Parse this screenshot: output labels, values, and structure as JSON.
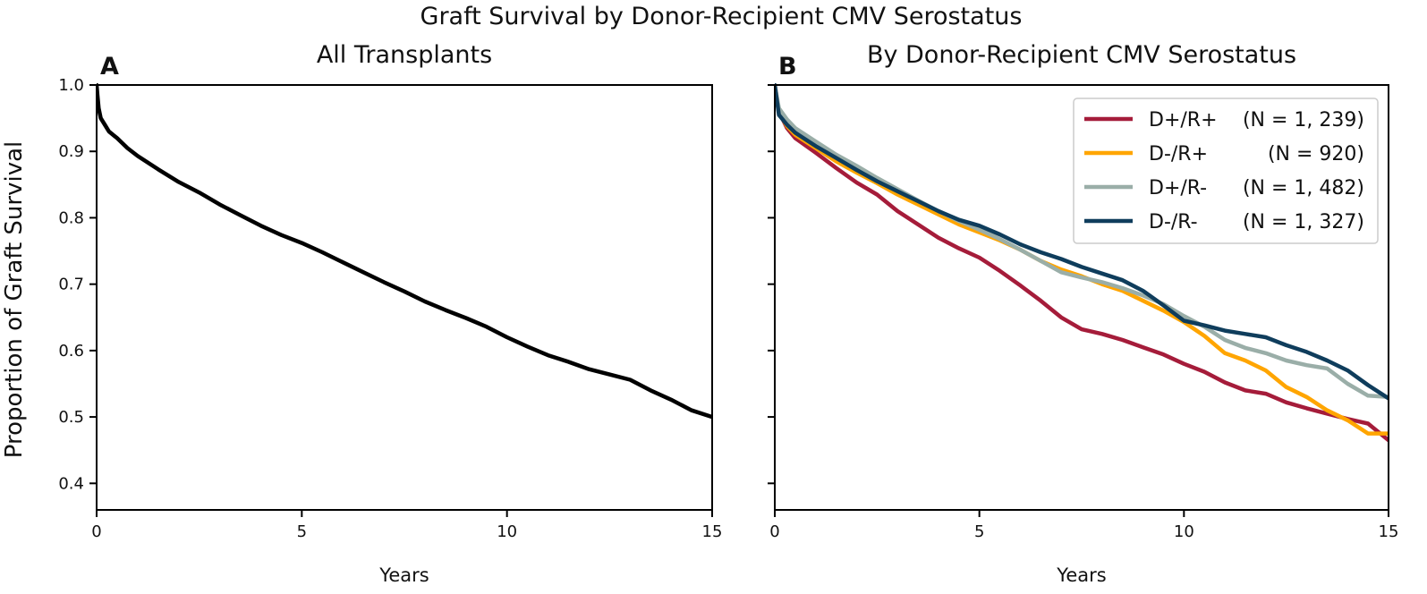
{
  "figure": {
    "suptitle": "Graft Survival by Donor-Recipient CMV Serostatus",
    "ylabel": "Proportion of Graft Survival"
  },
  "chart_data": [
    {
      "type": "line",
      "panel": "A",
      "title": "All Transplants",
      "xlabel": "Years",
      "ylabel": "Proportion of Graft Survival",
      "xlim": [
        0,
        15
      ],
      "ylim": [
        0.36,
        1.0
      ],
      "xticks": [
        0,
        5,
        10,
        15
      ],
      "yticks": [
        0.4,
        0.5,
        0.6,
        0.7,
        0.8,
        0.9,
        1.0
      ],
      "ytick_labels": [
        "0.4",
        "0.5",
        "0.6",
        "0.7",
        "0.8",
        "0.9",
        "1.0"
      ],
      "grid": false,
      "series": [
        {
          "color": "#000000",
          "x": [
            0,
            0.02,
            0.05,
            0.1,
            0.2,
            0.3,
            0.5,
            0.75,
            1,
            1.5,
            2,
            2.5,
            3,
            3.5,
            4,
            4.5,
            5,
            5.5,
            6,
            6.5,
            7,
            7.5,
            8,
            8.5,
            9,
            9.5,
            10,
            10.5,
            11,
            11.5,
            12,
            12.5,
            13,
            13.5,
            14,
            14.5,
            15
          ],
          "y": [
            1.0,
            0.985,
            0.965,
            0.95,
            0.94,
            0.93,
            0.92,
            0.905,
            0.893,
            0.873,
            0.854,
            0.838,
            0.82,
            0.804,
            0.788,
            0.774,
            0.762,
            0.748,
            0.733,
            0.718,
            0.703,
            0.689,
            0.674,
            0.661,
            0.649,
            0.636,
            0.62,
            0.606,
            0.593,
            0.583,
            0.572,
            0.564,
            0.556,
            0.54,
            0.526,
            0.51,
            0.5
          ]
        }
      ]
    },
    {
      "type": "line",
      "panel": "B",
      "title": "By Donor-Recipient CMV Serostatus",
      "xlabel": "Years",
      "xlim": [
        0,
        15
      ],
      "ylim": [
        0.36,
        1.0
      ],
      "xticks": [
        0,
        5,
        10,
        15
      ],
      "yticks": [
        0.4,
        0.5,
        0.6,
        0.7,
        0.8,
        0.9,
        1.0
      ],
      "grid": false,
      "legend_position": "top-right",
      "series": [
        {
          "name": "D+/R+",
          "n_label": "(N = 1, 239)",
          "color": "#a51c3a",
          "x": [
            0,
            0.1,
            0.3,
            0.5,
            1,
            1.5,
            2,
            2.5,
            3,
            3.5,
            4,
            4.5,
            5,
            5.5,
            6,
            6.5,
            7,
            7.5,
            8,
            8.5,
            9,
            9.5,
            10,
            10.5,
            11,
            11.5,
            12,
            12.5,
            13,
            13.5,
            14,
            14.5,
            15
          ],
          "y": [
            1.0,
            0.96,
            0.935,
            0.92,
            0.898,
            0.875,
            0.853,
            0.835,
            0.81,
            0.79,
            0.77,
            0.754,
            0.74,
            0.72,
            0.698,
            0.675,
            0.65,
            0.632,
            0.625,
            0.616,
            0.605,
            0.594,
            0.58,
            0.568,
            0.552,
            0.54,
            0.535,
            0.522,
            0.513,
            0.505,
            0.497,
            0.49,
            0.465
          ]
        },
        {
          "name": "D-/R+",
          "n_label": "(N = 920)",
          "color": "#ffa500",
          "x": [
            0,
            0.1,
            0.3,
            0.5,
            1,
            1.5,
            2,
            2.5,
            3,
            3.5,
            4,
            4.5,
            5,
            5.5,
            6,
            6.5,
            7,
            7.5,
            8,
            8.5,
            9,
            9.5,
            10,
            10.5,
            11,
            11.5,
            12,
            12.5,
            13,
            13.5,
            14,
            14.5,
            15
          ],
          "y": [
            1.0,
            0.958,
            0.938,
            0.925,
            0.905,
            0.885,
            0.868,
            0.852,
            0.835,
            0.82,
            0.805,
            0.79,
            0.778,
            0.766,
            0.752,
            0.735,
            0.722,
            0.712,
            0.7,
            0.69,
            0.675,
            0.66,
            0.643,
            0.622,
            0.596,
            0.585,
            0.57,
            0.545,
            0.53,
            0.51,
            0.495,
            0.475,
            0.475
          ]
        },
        {
          "name": "D+/R-",
          "n_label": "(N = 1, 482)",
          "color": "#9aaea8",
          "x": [
            0,
            0.1,
            0.3,
            0.5,
            1,
            1.5,
            2,
            2.5,
            3,
            3.5,
            4,
            4.5,
            5,
            5.5,
            6,
            6.5,
            7,
            7.5,
            8,
            8.5,
            9,
            9.5,
            10,
            10.5,
            11,
            11.5,
            12,
            12.5,
            13,
            13.5,
            14,
            14.5,
            15
          ],
          "y": [
            1.0,
            0.965,
            0.948,
            0.935,
            0.915,
            0.895,
            0.878,
            0.86,
            0.843,
            0.826,
            0.81,
            0.795,
            0.782,
            0.768,
            0.752,
            0.735,
            0.718,
            0.71,
            0.703,
            0.694,
            0.683,
            0.67,
            0.652,
            0.636,
            0.616,
            0.604,
            0.596,
            0.585,
            0.578,
            0.573,
            0.55,
            0.532,
            0.53
          ]
        },
        {
          "name": "D-/R-",
          "n_label": "(N = 1, 327)",
          "color": "#0f3d5c",
          "x": [
            0,
            0.1,
            0.3,
            0.5,
            1,
            1.5,
            2,
            2.5,
            3,
            3.5,
            4,
            4.5,
            5,
            5.5,
            6,
            6.5,
            7,
            7.5,
            8,
            8.5,
            9,
            9.5,
            10,
            10.5,
            11,
            11.5,
            12,
            12.5,
            13,
            13.5,
            14,
            14.5,
            15
          ],
          "y": [
            1.0,
            0.955,
            0.94,
            0.928,
            0.908,
            0.89,
            0.872,
            0.855,
            0.84,
            0.825,
            0.81,
            0.797,
            0.788,
            0.775,
            0.76,
            0.748,
            0.738,
            0.726,
            0.716,
            0.706,
            0.69,
            0.668,
            0.645,
            0.638,
            0.63,
            0.625,
            0.62,
            0.608,
            0.598,
            0.585,
            0.57,
            0.548,
            0.528
          ]
        }
      ]
    }
  ]
}
